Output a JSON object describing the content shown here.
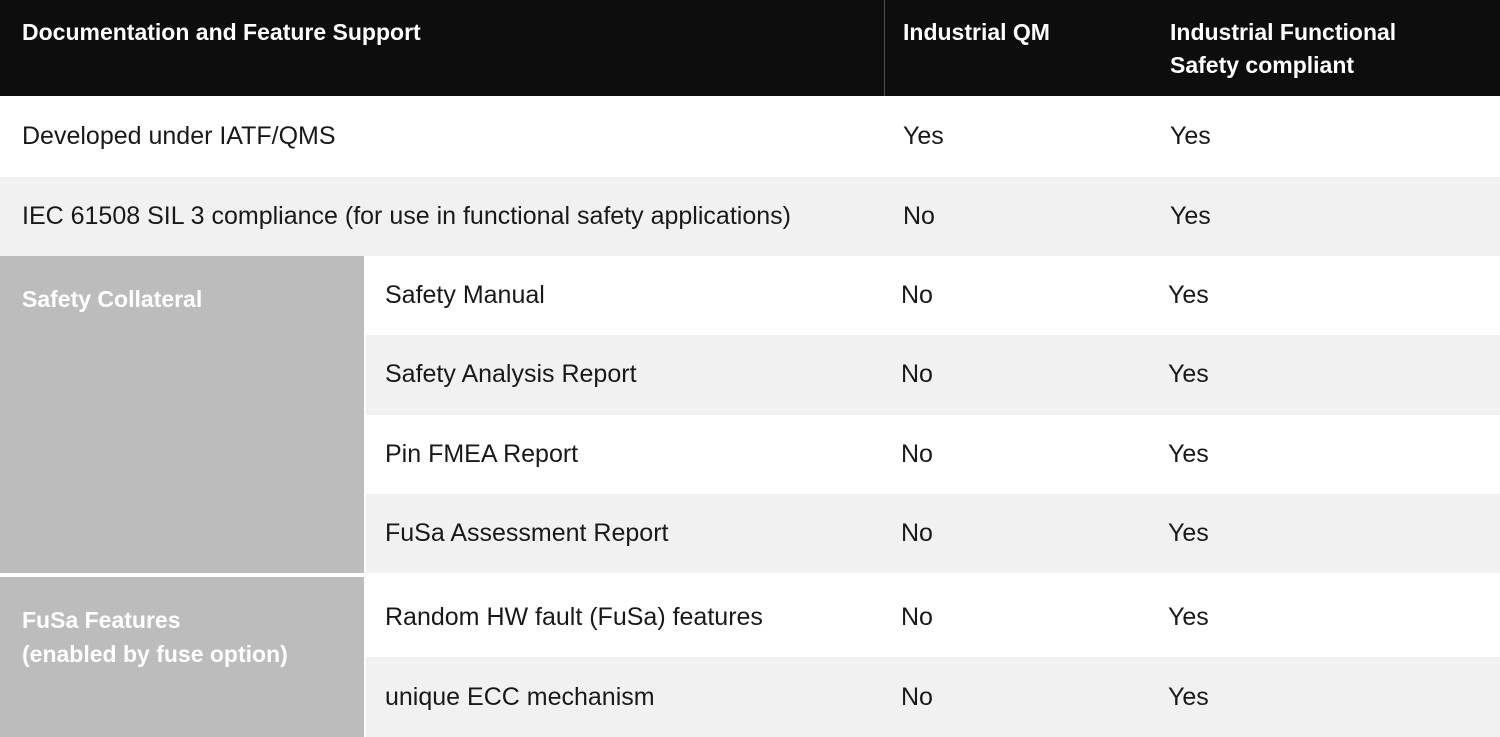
{
  "header": {
    "feature_col": "Documentation and Feature Support",
    "qm_col": "Industrial QM",
    "fusa_col": "Industrial Functional\nSafety compliant"
  },
  "rows": [
    {
      "label": "Developed under IATF/QMS",
      "qm": "Yes",
      "fusa": "Yes"
    },
    {
      "label": "IEC 61508 SIL 3 compliance (for use in functional safety applications)",
      "qm": "No",
      "fusa": "Yes"
    }
  ],
  "groups": [
    {
      "label": "Safety Collateral",
      "rows": [
        {
          "label": "Safety Manual",
          "qm": "No",
          "fusa": "Yes"
        },
        {
          "label": "Safety Analysis Report",
          "qm": "No",
          "fusa": "Yes"
        },
        {
          "label": "Pin FMEA Report",
          "qm": "No",
          "fusa": "Yes"
        },
        {
          "label": "FuSa Assessment Report",
          "qm": "No",
          "fusa": "Yes"
        }
      ]
    },
    {
      "label": "FuSa Features\n(enabled by fuse option)",
      "rows": [
        {
          "label": "Random HW fault (FuSa) features",
          "qm": "No",
          "fusa": "Yes"
        },
        {
          "label": "unique ECC mechanism",
          "qm": "No",
          "fusa": "Yes"
        }
      ]
    }
  ],
  "colors": {
    "header_bg": "#0d0d0d",
    "header_divider": "#505050",
    "alt_row_bg": "#f1f1f2",
    "group_cell_bg": "#bcbcbc",
    "text_dark": "#191919",
    "text_light": "#ffffff"
  }
}
